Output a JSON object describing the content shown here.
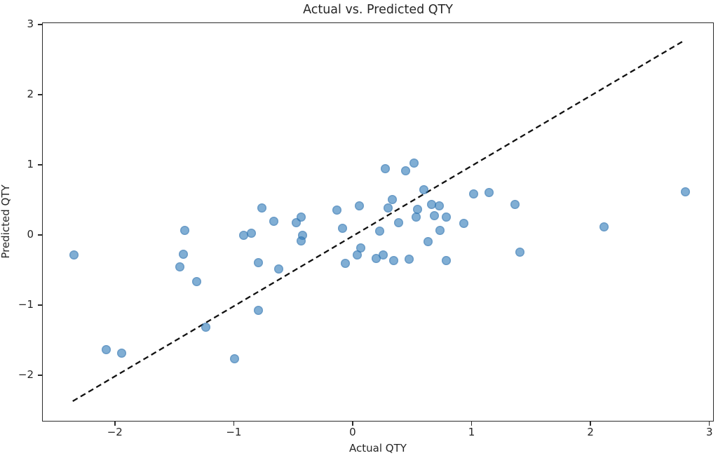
{
  "title": "Actual vs. Predicted QTY",
  "chart_data": {
    "type": "scatter",
    "title": "Actual vs. Predicted QTY",
    "xlabel": "Actual QTY",
    "ylabel": "Predicted QTY",
    "xlim": [
      -2.612,
      3.037
    ],
    "ylim": [
      -2.66,
      3.03
    ],
    "x_ticks": [
      -2,
      -1,
      0,
      1,
      2,
      3
    ],
    "y_ticks": [
      -2,
      -1,
      0,
      1,
      2,
      3
    ],
    "grid": false,
    "legend": "none",
    "marker_color": "#80AED4",
    "marker_alpha": 0.62,
    "series": [
      {
        "name": "predicted-vs-actual",
        "marker": "circle",
        "points": [
          [
            -2.35,
            -0.27
          ],
          [
            -2.08,
            -1.62
          ],
          [
            -1.95,
            -1.67
          ],
          [
            -1.46,
            -0.44
          ],
          [
            -1.43,
            -0.26
          ],
          [
            -1.42,
            0.08
          ],
          [
            -1.32,
            -0.65
          ],
          [
            -1.24,
            -1.3
          ],
          [
            -1.0,
            -1.75
          ],
          [
            -0.92,
            0.01
          ],
          [
            -0.86,
            0.04
          ],
          [
            -0.8,
            -0.38
          ],
          [
            -0.8,
            -1.06
          ],
          [
            -0.77,
            0.4
          ],
          [
            -0.67,
            0.21
          ],
          [
            -0.63,
            -0.47
          ],
          [
            -0.48,
            0.19
          ],
          [
            -0.44,
            0.27
          ],
          [
            -0.43,
            0.01
          ],
          [
            -0.44,
            -0.07
          ],
          [
            -0.14,
            0.37
          ],
          [
            -0.09,
            0.11
          ],
          [
            -0.07,
            -0.39
          ],
          [
            0.03,
            -0.27
          ],
          [
            0.06,
            -0.17
          ],
          [
            0.05,
            0.43
          ],
          [
            0.19,
            -0.32
          ],
          [
            0.22,
            0.07
          ],
          [
            0.25,
            -0.27
          ],
          [
            0.27,
            0.96
          ],
          [
            0.29,
            0.4
          ],
          [
            0.33,
            0.52
          ],
          [
            0.34,
            -0.35
          ],
          [
            0.38,
            0.19
          ],
          [
            0.44,
            0.93
          ],
          [
            0.47,
            -0.33
          ],
          [
            0.51,
            1.04
          ],
          [
            0.53,
            0.27
          ],
          [
            0.54,
            0.38
          ],
          [
            0.59,
            0.66
          ],
          [
            0.63,
            -0.08
          ],
          [
            0.66,
            0.45
          ],
          [
            0.72,
            0.43
          ],
          [
            0.68,
            0.29
          ],
          [
            0.78,
            0.27
          ],
          [
            0.73,
            0.08
          ],
          [
            0.78,
            -0.35
          ],
          [
            0.93,
            0.18
          ],
          [
            1.01,
            0.6
          ],
          [
            1.14,
            0.62
          ],
          [
            1.36,
            0.45
          ],
          [
            1.4,
            -0.23
          ],
          [
            2.11,
            0.13
          ],
          [
            2.79,
            0.63
          ]
        ]
      }
    ],
    "identity_line": {
      "x1": -2.36,
      "y1": -2.36,
      "x2": 2.79,
      "y2": 2.79,
      "style": "dashed",
      "color": "#111111",
      "dash_on": 8,
      "dash_off": 5,
      "width": 2.3
    }
  }
}
